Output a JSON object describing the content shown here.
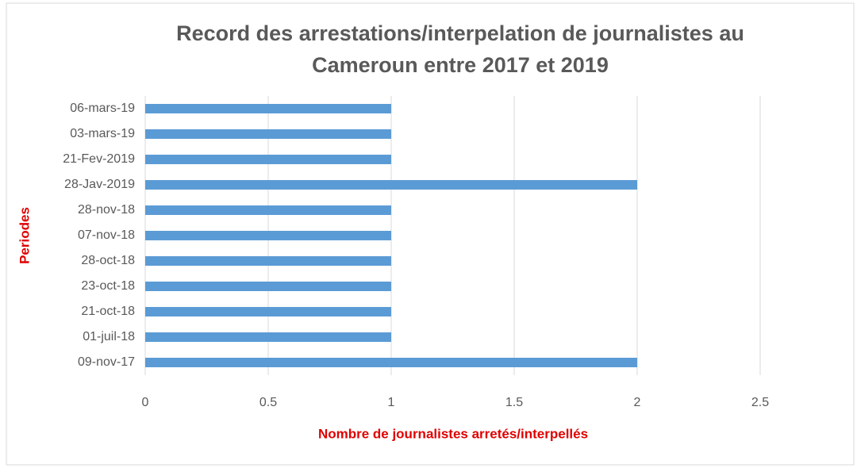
{
  "chart_data": {
    "type": "bar",
    "orientation": "horizontal",
    "title": "Record des arrestations/interpelation de journalistes au Cameroun entre 2017 et 2019",
    "x_label": "Nombre de journalistes arretés/interpellés",
    "y_label": "Periodes",
    "categories": [
      "09-nov-17",
      "01-juil-18",
      "21-oct-18",
      "23-oct-18",
      "28-oct-18",
      "07-nov-18",
      "28-nov-18",
      "28-Jav-2019",
      "21-Fev-2019",
      "03-mars-19",
      "06-mars-19"
    ],
    "values": [
      2,
      1,
      1,
      1,
      1,
      1,
      1,
      2,
      1,
      1,
      1
    ],
    "color": "#5b9bd5",
    "xlim": [
      0,
      2.5
    ],
    "xticks": [
      0,
      0.5,
      1,
      1.5,
      2,
      2.5
    ],
    "grid": true
  }
}
